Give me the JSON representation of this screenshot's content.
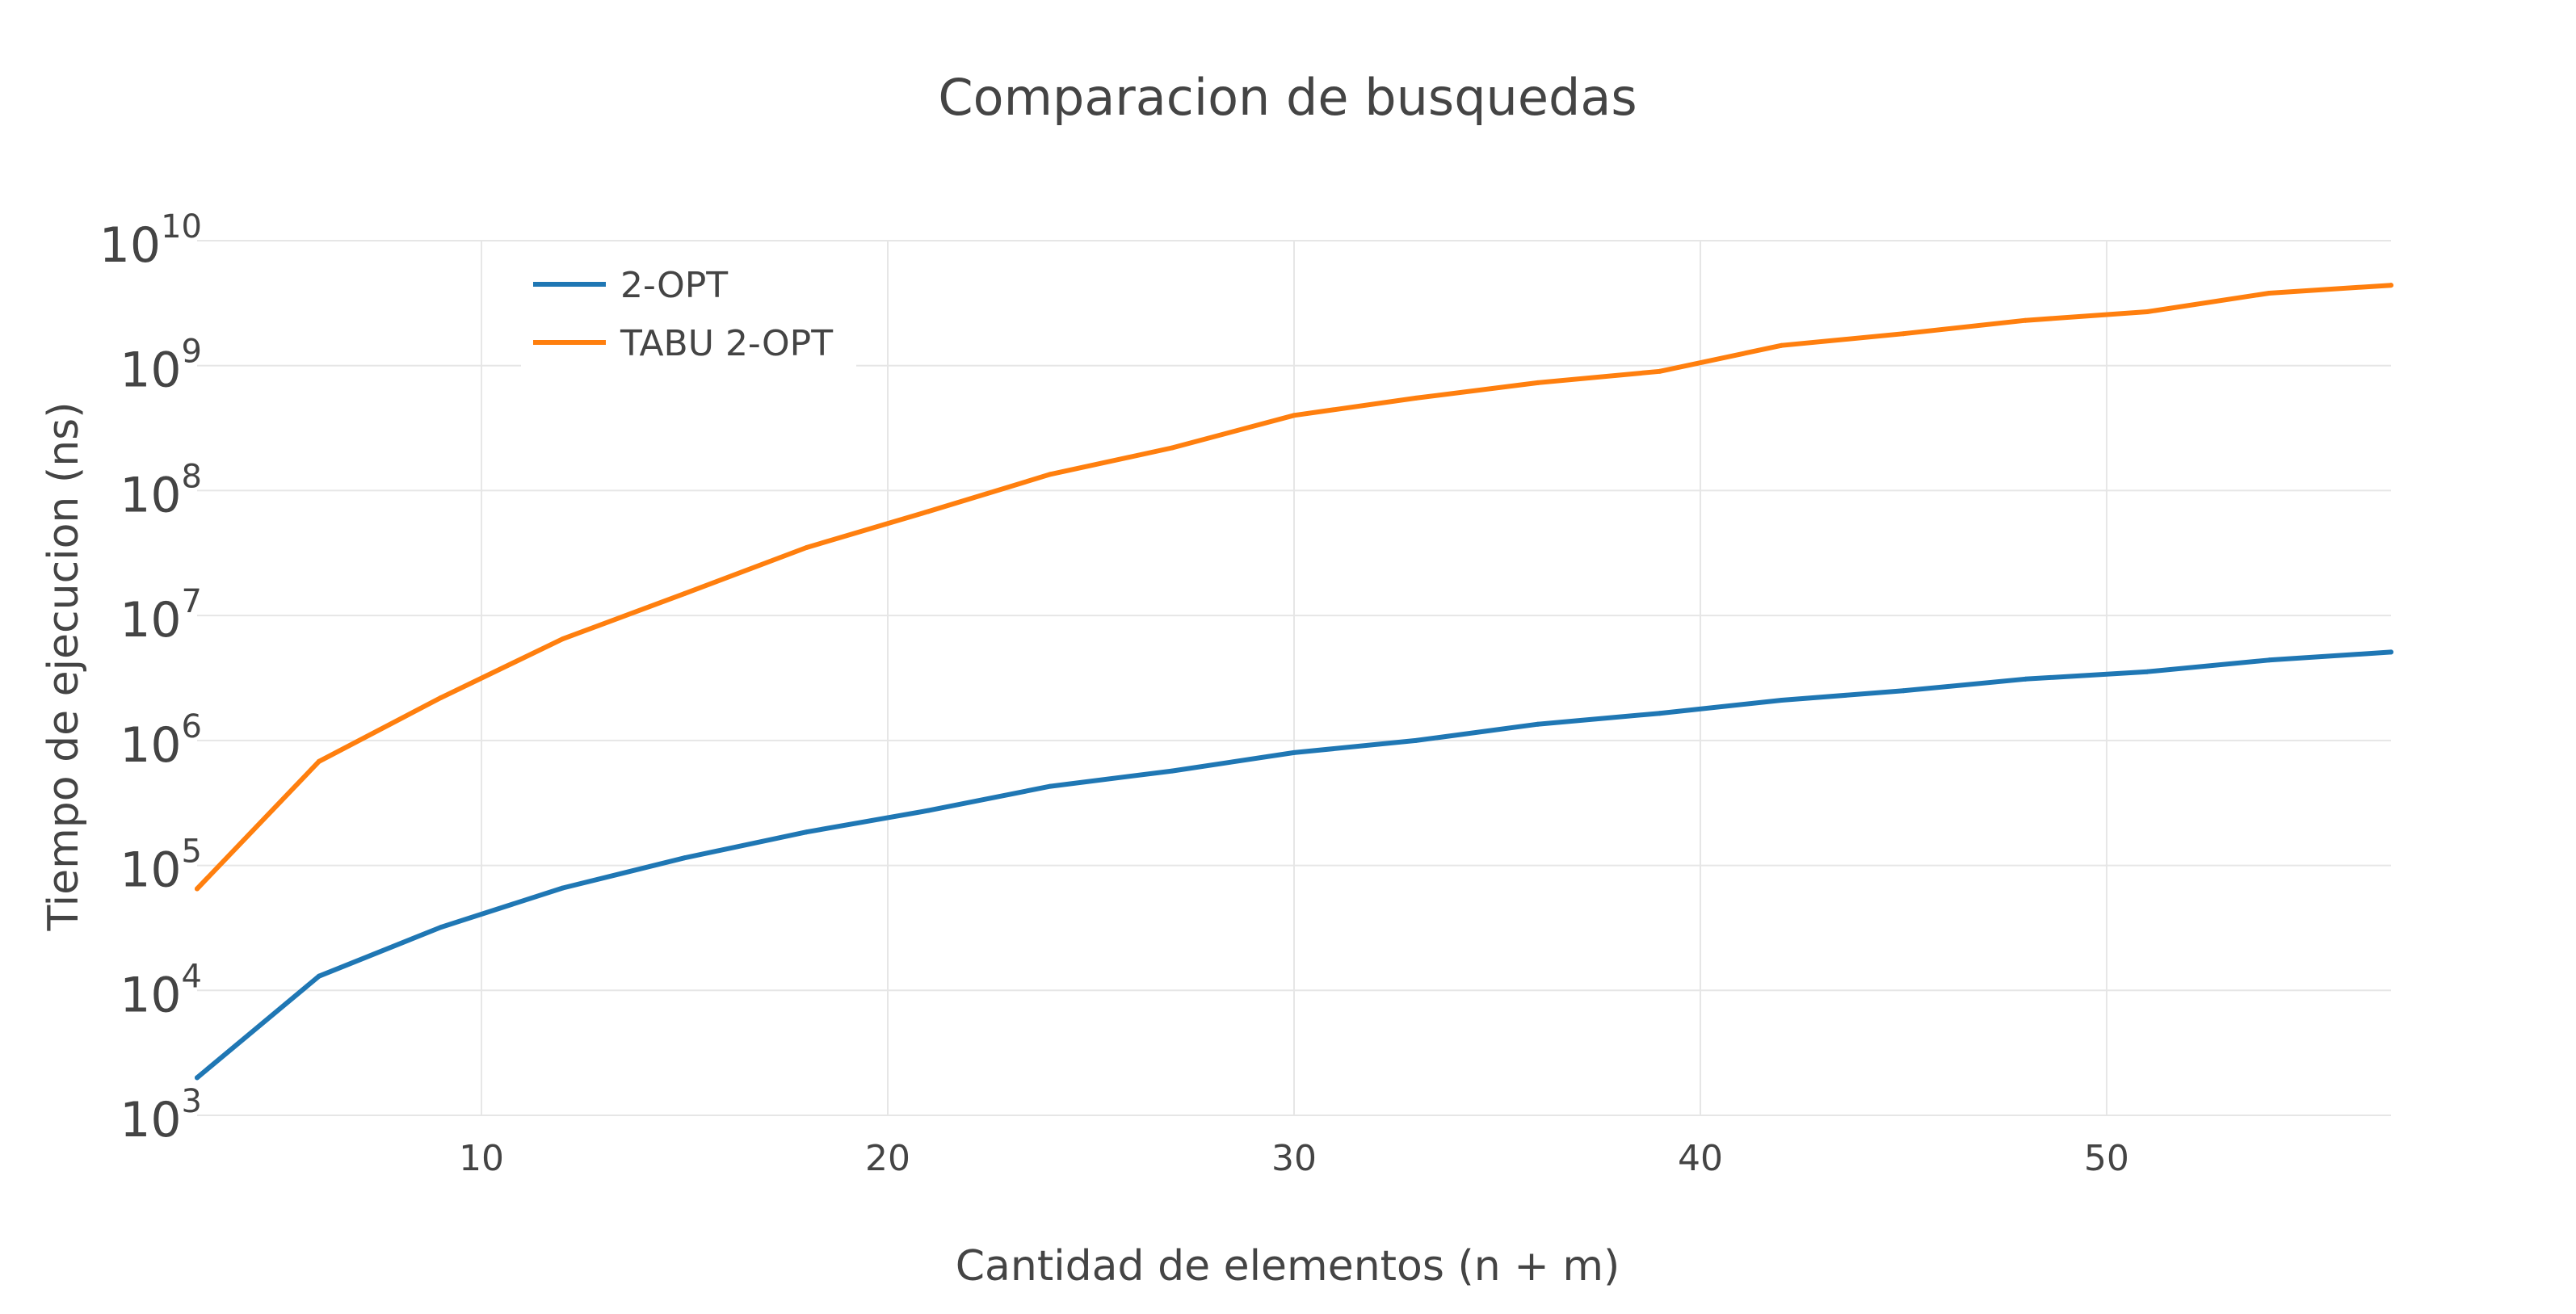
{
  "chart_data": {
    "type": "line",
    "title": "Comparacion de busquedas",
    "xlabel": "Cantidad de elementos (n + m)",
    "ylabel": "Tiempo de ejecucion (ns)",
    "x_scale": "linear",
    "y_scale": "log",
    "xlim": [
      3,
      57
    ],
    "ylim": [
      1000,
      10000000000
    ],
    "x_ticks": [
      10,
      20,
      30,
      40,
      50
    ],
    "y_ticks": [
      {
        "value": 1000,
        "base": "10",
        "exp": "3"
      },
      {
        "value": 10000,
        "base": "10",
        "exp": "4"
      },
      {
        "value": 100000,
        "base": "10",
        "exp": "5"
      },
      {
        "value": 1000000,
        "base": "10",
        "exp": "6"
      },
      {
        "value": 10000000,
        "base": "10",
        "exp": "7"
      },
      {
        "value": 100000000,
        "base": "10",
        "exp": "8"
      },
      {
        "value": 1000000000,
        "base": "10",
        "exp": "9"
      },
      {
        "value": 10000000000,
        "base": "10",
        "exp": "10"
      }
    ],
    "grid": true,
    "legend_position": "top-left",
    "x": [
      3,
      6,
      9,
      12,
      15,
      18,
      21,
      24,
      27,
      30,
      33,
      36,
      39,
      42,
      45,
      48,
      51,
      54,
      57
    ],
    "series": [
      {
        "name": "2-OPT",
        "color": "#1f77b4",
        "values": [
          2000,
          13000,
          32000,
          66000,
          115000,
          185000,
          275000,
          430000,
          570000,
          800000,
          1000000,
          1350000,
          1650000,
          2100000,
          2500000,
          3100000,
          3550000,
          4400000,
          5100000
        ]
      },
      {
        "name": "TABU 2-OPT",
        "color": "#ff7f0e",
        "values": [
          65000,
          680000,
          2200000,
          6500000,
          15000000,
          35000000,
          68000000,
          135000000,
          220000000,
          400000000,
          550000000,
          730000000,
          900000000,
          1450000000,
          1800000000,
          2300000000,
          2700000000,
          3800000000,
          4400000000
        ]
      }
    ]
  }
}
